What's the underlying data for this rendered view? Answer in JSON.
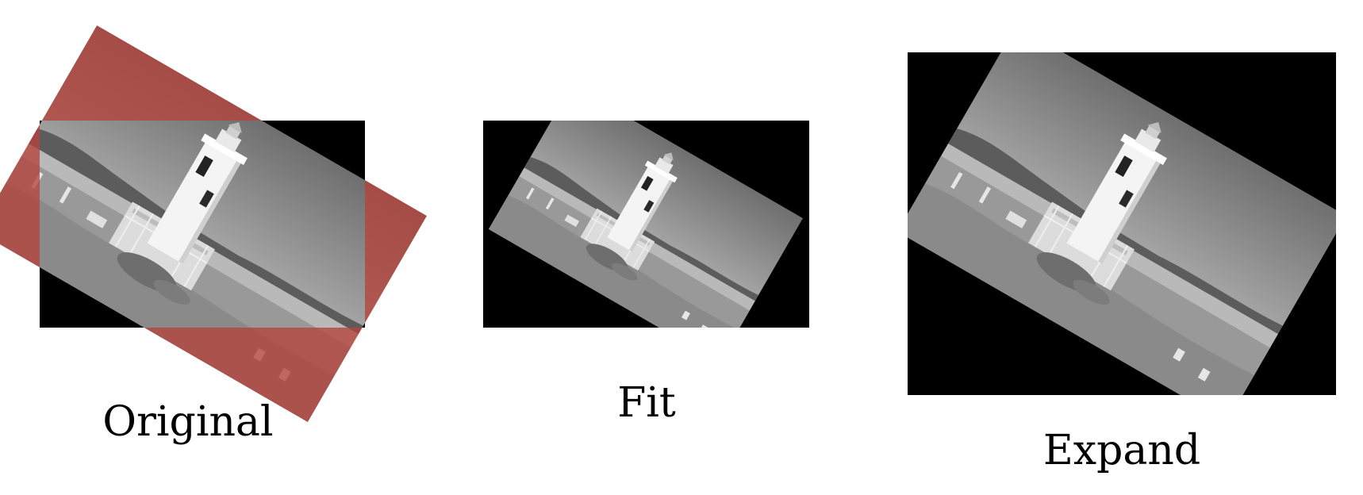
{
  "panels": [
    {
      "id": "original",
      "label": "Original"
    },
    {
      "id": "fit",
      "label": "Fit"
    },
    {
      "id": "expand",
      "label": "Expand"
    }
  ],
  "colors": {
    "background": "#ffffff",
    "canvas": "#000000",
    "overflow_region": "#b3423a",
    "sky_top": "#7a7a7a",
    "sky_bottom": "#b5b5b5",
    "ground": "#9b9b9b",
    "lighthouse": "#f2f2f2"
  },
  "icons": [
    "lighthouse-photo"
  ]
}
